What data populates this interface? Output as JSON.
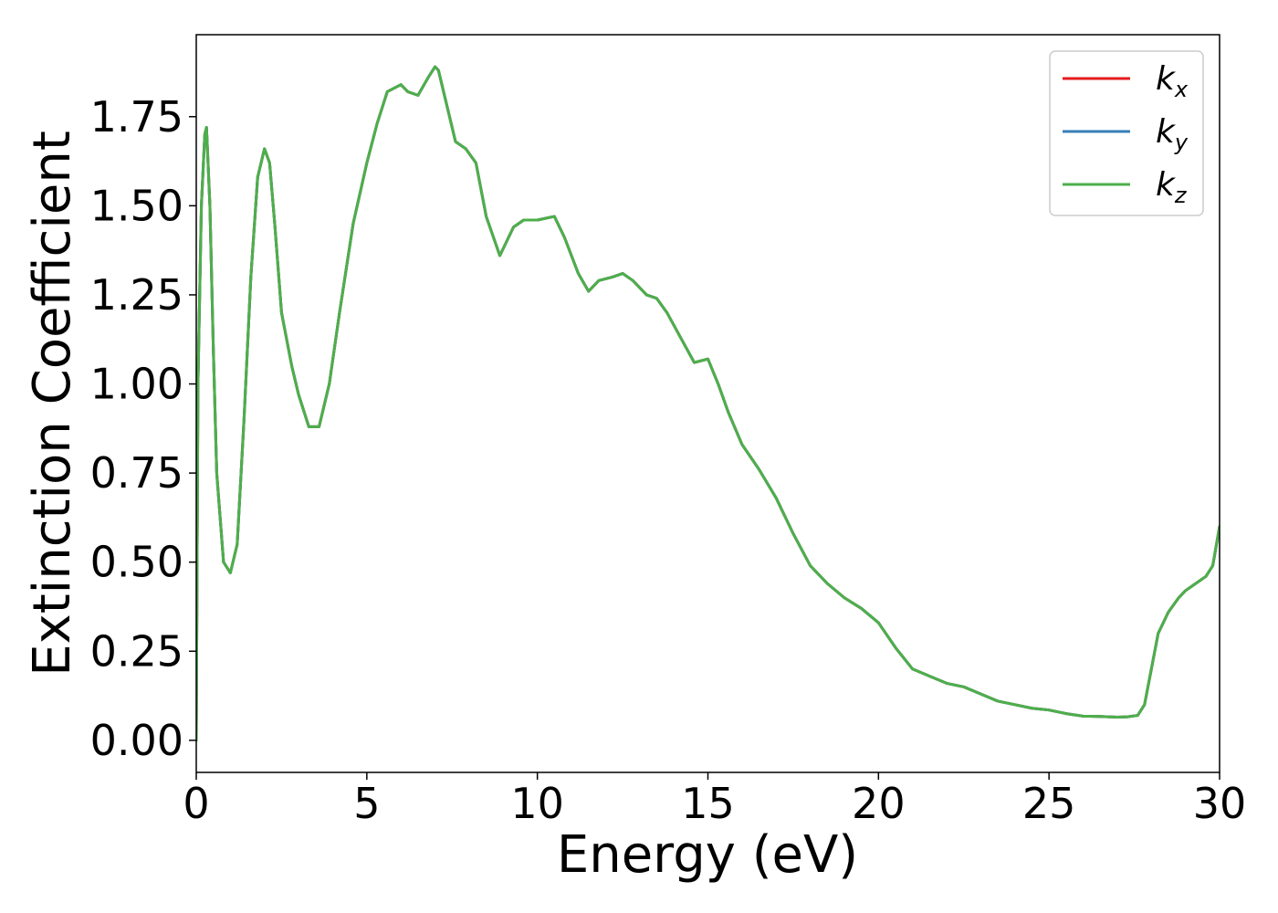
{
  "chart_data": {
    "type": "line",
    "title": "",
    "xlabel": "Energy (eV)",
    "ylabel": "Extinction Coefficient",
    "xlim": [
      0,
      30
    ],
    "ylim": [
      -0.09,
      1.98
    ],
    "xticks": [
      0,
      5,
      10,
      15,
      20,
      25,
      30
    ],
    "xtick_labels": [
      "0",
      "5",
      "10",
      "15",
      "20",
      "25",
      "30"
    ],
    "yticks": [
      0.0,
      0.25,
      0.5,
      0.75,
      1.0,
      1.25,
      1.5,
      1.75
    ],
    "ytick_labels": [
      "0.00",
      "0.25",
      "0.50",
      "0.75",
      "1.00",
      "1.25",
      "1.50",
      "1.75"
    ],
    "grid": false,
    "legend": {
      "position": "top-right"
    },
    "series": [
      {
        "name": "k_x",
        "label_base": "k",
        "label_sub": "x",
        "color": "#e41a1c",
        "x": [
          0,
          0.05,
          0.15,
          0.25,
          0.3,
          0.4,
          0.5,
          0.6,
          0.8,
          1.0,
          1.2,
          1.4,
          1.6,
          1.8,
          2.0,
          2.15,
          2.3,
          2.5,
          2.8,
          3.0,
          3.3,
          3.6,
          3.9,
          4.2,
          4.6,
          5.0,
          5.3,
          5.6,
          6.0,
          6.2,
          6.5,
          6.8,
          7.0,
          7.1,
          7.3,
          7.6,
          7.9,
          8.2,
          8.5,
          8.9,
          9.3,
          9.6,
          10.0,
          10.5,
          10.8,
          11.2,
          11.5,
          11.8,
          12.2,
          12.5,
          12.8,
          13.2,
          13.5,
          13.8,
          14.2,
          14.6,
          15.0,
          15.3,
          15.6,
          16.0,
          16.5,
          17.0,
          17.5,
          18.0,
          18.5,
          19.0,
          19.5,
          20.0,
          20.5,
          21.0,
          21.5,
          22.0,
          22.5,
          23.0,
          23.5,
          24.0,
          24.5,
          25.0,
          25.5,
          26.0,
          26.5,
          27.0,
          27.3,
          27.6,
          27.8,
          28.0,
          28.2,
          28.5,
          28.8,
          29.0,
          29.3,
          29.6,
          29.8,
          30.0
        ],
        "values": [
          0.0,
          1.0,
          1.5,
          1.7,
          1.72,
          1.5,
          1.1,
          0.75,
          0.5,
          0.47,
          0.55,
          0.9,
          1.3,
          1.58,
          1.66,
          1.62,
          1.45,
          1.2,
          1.05,
          0.97,
          0.88,
          0.88,
          1.0,
          1.2,
          1.45,
          1.62,
          1.73,
          1.82,
          1.84,
          1.82,
          1.81,
          1.86,
          1.89,
          1.88,
          1.8,
          1.68,
          1.66,
          1.62,
          1.47,
          1.36,
          1.44,
          1.46,
          1.46,
          1.47,
          1.41,
          1.31,
          1.26,
          1.29,
          1.3,
          1.31,
          1.29,
          1.25,
          1.24,
          1.2,
          1.13,
          1.06,
          1.07,
          1.0,
          0.92,
          0.83,
          0.76,
          0.68,
          0.58,
          0.49,
          0.44,
          0.4,
          0.37,
          0.33,
          0.26,
          0.2,
          0.18,
          0.16,
          0.15,
          0.13,
          0.11,
          0.1,
          0.09,
          0.085,
          0.075,
          0.068,
          0.067,
          0.065,
          0.066,
          0.07,
          0.1,
          0.2,
          0.3,
          0.36,
          0.4,
          0.42,
          0.44,
          0.46,
          0.49,
          0.6
        ]
      },
      {
        "name": "k_y",
        "label_base": "k",
        "label_sub": "y",
        "color": "#377eb8",
        "x": [
          0,
          0.05,
          0.15,
          0.25,
          0.3,
          0.4,
          0.5,
          0.6,
          0.8,
          1.0,
          1.2,
          1.4,
          1.6,
          1.8,
          2.0,
          2.15,
          2.3,
          2.5,
          2.8,
          3.0,
          3.3,
          3.6,
          3.9,
          4.2,
          4.6,
          5.0,
          5.3,
          5.6,
          6.0,
          6.2,
          6.5,
          6.8,
          7.0,
          7.1,
          7.3,
          7.6,
          7.9,
          8.2,
          8.5,
          8.9,
          9.3,
          9.6,
          10.0,
          10.5,
          10.8,
          11.2,
          11.5,
          11.8,
          12.2,
          12.5,
          12.8,
          13.2,
          13.5,
          13.8,
          14.2,
          14.6,
          15.0,
          15.3,
          15.6,
          16.0,
          16.5,
          17.0,
          17.5,
          18.0,
          18.5,
          19.0,
          19.5,
          20.0,
          20.5,
          21.0,
          21.5,
          22.0,
          22.5,
          23.0,
          23.5,
          24.0,
          24.5,
          25.0,
          25.5,
          26.0,
          26.5,
          27.0,
          27.3,
          27.6,
          27.8,
          28.0,
          28.2,
          28.5,
          28.8,
          29.0,
          29.3,
          29.6,
          29.8,
          30.0
        ],
        "values": [
          0.0,
          1.0,
          1.5,
          1.7,
          1.72,
          1.5,
          1.1,
          0.75,
          0.5,
          0.47,
          0.55,
          0.9,
          1.3,
          1.58,
          1.66,
          1.62,
          1.45,
          1.2,
          1.05,
          0.97,
          0.88,
          0.88,
          1.0,
          1.2,
          1.45,
          1.62,
          1.73,
          1.82,
          1.84,
          1.82,
          1.81,
          1.86,
          1.89,
          1.88,
          1.8,
          1.68,
          1.66,
          1.62,
          1.47,
          1.36,
          1.44,
          1.46,
          1.46,
          1.47,
          1.41,
          1.31,
          1.26,
          1.29,
          1.3,
          1.31,
          1.29,
          1.25,
          1.24,
          1.2,
          1.13,
          1.06,
          1.07,
          1.0,
          0.92,
          0.83,
          0.76,
          0.68,
          0.58,
          0.49,
          0.44,
          0.4,
          0.37,
          0.33,
          0.26,
          0.2,
          0.18,
          0.16,
          0.15,
          0.13,
          0.11,
          0.1,
          0.09,
          0.085,
          0.075,
          0.068,
          0.067,
          0.065,
          0.066,
          0.07,
          0.1,
          0.2,
          0.3,
          0.36,
          0.4,
          0.42,
          0.44,
          0.46,
          0.49,
          0.6
        ]
      },
      {
        "name": "k_z",
        "label_base": "k",
        "label_sub": "z",
        "color": "#4daf4a",
        "x": [
          0,
          0.05,
          0.15,
          0.25,
          0.3,
          0.4,
          0.5,
          0.6,
          0.8,
          1.0,
          1.2,
          1.4,
          1.6,
          1.8,
          2.0,
          2.15,
          2.3,
          2.5,
          2.8,
          3.0,
          3.3,
          3.6,
          3.9,
          4.2,
          4.6,
          5.0,
          5.3,
          5.6,
          6.0,
          6.2,
          6.5,
          6.8,
          7.0,
          7.1,
          7.3,
          7.6,
          7.9,
          8.2,
          8.5,
          8.9,
          9.3,
          9.6,
          10.0,
          10.5,
          10.8,
          11.2,
          11.5,
          11.8,
          12.2,
          12.5,
          12.8,
          13.2,
          13.5,
          13.8,
          14.2,
          14.6,
          15.0,
          15.3,
          15.6,
          16.0,
          16.5,
          17.0,
          17.5,
          18.0,
          18.5,
          19.0,
          19.5,
          20.0,
          20.5,
          21.0,
          21.5,
          22.0,
          22.5,
          23.0,
          23.5,
          24.0,
          24.5,
          25.0,
          25.5,
          26.0,
          26.5,
          27.0,
          27.3,
          27.6,
          27.8,
          28.0,
          28.2,
          28.5,
          28.8,
          29.0,
          29.3,
          29.6,
          29.8,
          30.0
        ],
        "values": [
          0.0,
          1.0,
          1.5,
          1.7,
          1.72,
          1.5,
          1.1,
          0.75,
          0.5,
          0.47,
          0.55,
          0.9,
          1.3,
          1.58,
          1.66,
          1.62,
          1.45,
          1.2,
          1.05,
          0.97,
          0.88,
          0.88,
          1.0,
          1.2,
          1.45,
          1.62,
          1.73,
          1.82,
          1.84,
          1.82,
          1.81,
          1.86,
          1.89,
          1.88,
          1.8,
          1.68,
          1.66,
          1.62,
          1.47,
          1.36,
          1.44,
          1.46,
          1.46,
          1.47,
          1.41,
          1.31,
          1.26,
          1.29,
          1.3,
          1.31,
          1.29,
          1.25,
          1.24,
          1.2,
          1.13,
          1.06,
          1.07,
          1.0,
          0.92,
          0.83,
          0.76,
          0.68,
          0.58,
          0.49,
          0.44,
          0.4,
          0.37,
          0.33,
          0.26,
          0.2,
          0.18,
          0.16,
          0.15,
          0.13,
          0.11,
          0.1,
          0.09,
          0.085,
          0.075,
          0.068,
          0.067,
          0.065,
          0.066,
          0.07,
          0.1,
          0.2,
          0.3,
          0.36,
          0.4,
          0.42,
          0.44,
          0.46,
          0.49,
          0.6
        ]
      }
    ]
  }
}
